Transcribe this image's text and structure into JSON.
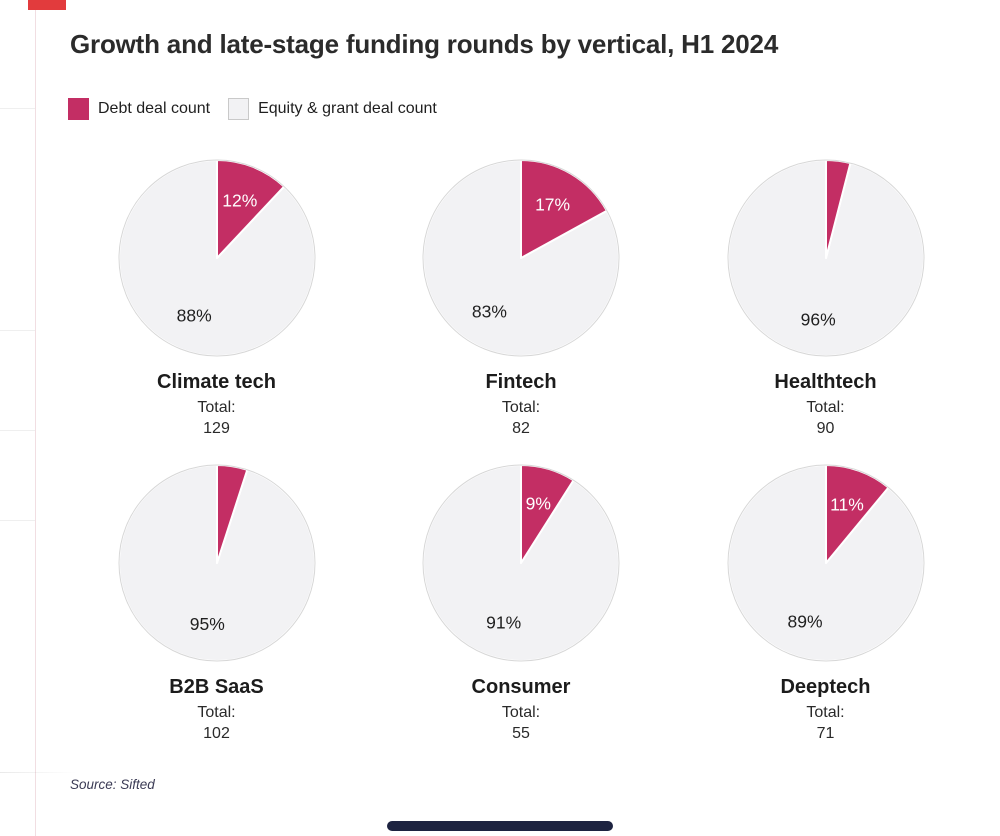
{
  "header": {
    "title": "Growth and late-stage funding rounds by vertical, H1 2024"
  },
  "legend": {
    "items": [
      {
        "label": "Debt deal count",
        "color": "#c32e64",
        "border": "#c32e64"
      },
      {
        "label": "Equity & grant deal count",
        "color": "#f2f2f4",
        "border": "#c9c9c9"
      }
    ]
  },
  "colors": {
    "debt": "#c32e64",
    "equity": "#f2f2f4",
    "pie_rim": "#d7d7d7",
    "slice_separator": "#ffffff",
    "debt_label_text": "#ffffff",
    "equity_label_text": "#1f1f1f"
  },
  "chart_data": {
    "type": "pie",
    "title": "Growth and late-stage funding rounds by vertical, H1 2024",
    "legend_position": "top-left",
    "series_labels": [
      "Debt deal count",
      "Equity & grant deal count"
    ],
    "unit": "%",
    "total_label": "Total:",
    "pies": [
      {
        "name": "Climate tech",
        "debt_pct": 12,
        "equity_pct": 88,
        "debt_text": "12%",
        "equity_text": "88%",
        "total": 129
      },
      {
        "name": "Fintech",
        "debt_pct": 17,
        "equity_pct": 83,
        "debt_text": "17%",
        "equity_text": "83%",
        "total": 82
      },
      {
        "name": "Healthtech",
        "debt_pct": 4,
        "equity_pct": 96,
        "debt_text": "",
        "equity_text": "96%",
        "total": 90
      },
      {
        "name": "B2B SaaS",
        "debt_pct": 5,
        "equity_pct": 95,
        "debt_text": "",
        "equity_text": "95%",
        "total": 102
      },
      {
        "name": "Consumer",
        "debt_pct": 9,
        "equity_pct": 91,
        "debt_text": "9%",
        "equity_text": "91%",
        "total": 55
      },
      {
        "name": "Deeptech",
        "debt_pct": 11,
        "equity_pct": 89,
        "debt_text": "11%",
        "equity_text": "89%",
        "total": 71
      }
    ]
  },
  "footer": {
    "source": "Source: Sifted"
  }
}
